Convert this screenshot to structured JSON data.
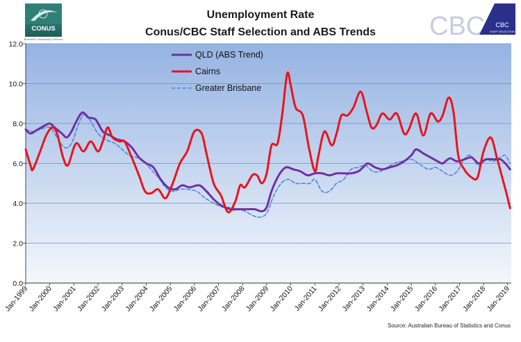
{
  "logos": {
    "conus": {
      "text": "CONUS",
      "tagline": "Business Consultancy Services"
    },
    "cbc": {
      "text": "CBC",
      "badge_line1": "CBC",
      "badge_line2": "STAFF SELECTION"
    }
  },
  "colors": {
    "qld": "#7030A0",
    "cairns": "#E8141B",
    "brisbane": "#4A86D8",
    "plot_top": "#95B3E2",
    "plot_bottom": "#F4F7FC",
    "gridline": "#6B8FC6"
  },
  "chart_data": {
    "type": "line",
    "title": "Unemployment Rate",
    "subtitle": "Conus/CBC Staff Selection and ABS Trends",
    "ylim": [
      0,
      12
    ],
    "yticks": [
      "0.0",
      "2.0",
      "4.0",
      "6.0",
      "8.0",
      "10.0",
      "12.0"
    ],
    "ytick_values": [
      0,
      2,
      4,
      6,
      8,
      10,
      12
    ],
    "xlim": [
      1999,
      2019.15
    ],
    "xticks": [
      "Jan-1999",
      "Jan-2000",
      "Jan-2001",
      "Jan-2002",
      "Jan-2003",
      "Jan-2004",
      "Jan-2005",
      "Jan-2006",
      "Jan-2007",
      "Jan-2008",
      "Jan-2009",
      "Jan-2010",
      "Jan-2011",
      "Jan-2012",
      "Jan-2013",
      "Jan-2014",
      "Jan-2015",
      "Jan-2016",
      "Jan-2017",
      "Jan-2018",
      "Jan-2019"
    ],
    "xtick_values": [
      1999,
      2000,
      2001,
      2002,
      2003,
      2004,
      2005,
      2006,
      2007,
      2008,
      2009,
      2010,
      2011,
      2012,
      2013,
      2014,
      2015,
      2016,
      2017,
      2018,
      2019
    ],
    "grid": "horizontal",
    "legend_position": "top-center",
    "source": "Source: Australian Bureau of Statistics and Conus",
    "series": [
      {
        "name": "QLD (ABS Trend)",
        "style": "solid",
        "points": [
          [
            1999,
            7.7
          ],
          [
            1999.2,
            7.5
          ],
          [
            1999.5,
            7.7
          ],
          [
            1999.8,
            7.9
          ],
          [
            2000,
            8.0
          ],
          [
            2000.2,
            7.8
          ],
          [
            2000.5,
            7.5
          ],
          [
            2000.7,
            7.3
          ],
          [
            2000.9,
            7.6
          ],
          [
            2001.1,
            8.1
          ],
          [
            2001.35,
            8.55
          ],
          [
            2001.6,
            8.3
          ],
          [
            2001.9,
            8.2
          ],
          [
            2002.2,
            7.6
          ],
          [
            2002.5,
            7.4
          ],
          [
            2002.8,
            7.2
          ],
          [
            2003.1,
            7.1
          ],
          [
            2003.4,
            6.8
          ],
          [
            2003.7,
            6.3
          ],
          [
            2004,
            6.0
          ],
          [
            2004.3,
            5.8
          ],
          [
            2004.6,
            5.2
          ],
          [
            2004.9,
            4.8
          ],
          [
            2005.2,
            4.7
          ],
          [
            2005.5,
            4.9
          ],
          [
            2005.8,
            4.8
          ],
          [
            2006.2,
            4.9
          ],
          [
            2006.5,
            4.6
          ],
          [
            2006.8,
            4.2
          ],
          [
            2007.1,
            3.9
          ],
          [
            2007.5,
            3.7
          ],
          [
            2007.8,
            3.7
          ],
          [
            2008.2,
            3.7
          ],
          [
            2008.5,
            3.7
          ],
          [
            2008.8,
            3.6
          ],
          [
            2009,
            3.8
          ],
          [
            2009.2,
            4.6
          ],
          [
            2009.5,
            5.4
          ],
          [
            2009.8,
            5.8
          ],
          [
            2010.1,
            5.7
          ],
          [
            2010.4,
            5.6
          ],
          [
            2010.7,
            5.4
          ],
          [
            2011,
            5.5
          ],
          [
            2011.3,
            5.5
          ],
          [
            2011.6,
            5.4
          ],
          [
            2011.9,
            5.5
          ],
          [
            2012.2,
            5.5
          ],
          [
            2012.5,
            5.5
          ],
          [
            2012.8,
            5.6
          ],
          [
            2013,
            5.8
          ],
          [
            2013.2,
            6.0
          ],
          [
            2013.5,
            5.8
          ],
          [
            2013.8,
            5.7
          ],
          [
            2014.1,
            5.8
          ],
          [
            2014.4,
            5.9
          ],
          [
            2014.7,
            6.1
          ],
          [
            2015.0,
            6.4
          ],
          [
            2015.2,
            6.7
          ],
          [
            2015.5,
            6.5
          ],
          [
            2015.8,
            6.3
          ],
          [
            2016.1,
            6.1
          ],
          [
            2016.3,
            6.0
          ],
          [
            2016.6,
            6.25
          ],
          [
            2016.9,
            6.1
          ],
          [
            2017.2,
            6.2
          ],
          [
            2017.5,
            6.3
          ],
          [
            2017.8,
            6.0
          ],
          [
            2018.1,
            6.2
          ],
          [
            2018.4,
            6.2
          ],
          [
            2018.7,
            6.2
          ],
          [
            2018.9,
            6.0
          ],
          [
            2019.1,
            5.7
          ]
        ]
      },
      {
        "name": "Cairns",
        "style": "solid",
        "points": [
          [
            1999,
            6.7
          ],
          [
            1999.2,
            5.9
          ],
          [
            1999.3,
            5.7
          ],
          [
            1999.6,
            6.6
          ],
          [
            1999.85,
            7.4
          ],
          [
            2000.1,
            7.8
          ],
          [
            2000.3,
            7.5
          ],
          [
            2000.55,
            6.3
          ],
          [
            2000.75,
            5.9
          ],
          [
            2001,
            6.8
          ],
          [
            2001.15,
            7.0
          ],
          [
            2001.4,
            6.6
          ],
          [
            2001.7,
            7.1
          ],
          [
            2002,
            6.6
          ],
          [
            2002.2,
            7.1
          ],
          [
            2002.4,
            7.8
          ],
          [
            2002.6,
            7.3
          ],
          [
            2002.9,
            7.1
          ],
          [
            2003.1,
            7.1
          ],
          [
            2003.4,
            6.3
          ],
          [
            2003.7,
            5.4
          ],
          [
            2003.95,
            4.6
          ],
          [
            2004.2,
            4.5
          ],
          [
            2004.5,
            4.7
          ],
          [
            2004.8,
            4.25
          ],
          [
            2005.1,
            5.0
          ],
          [
            2005.4,
            6.0
          ],
          [
            2005.7,
            6.6
          ],
          [
            2006,
            7.6
          ],
          [
            2006.3,
            7.5
          ],
          [
            2006.5,
            6.5
          ],
          [
            2006.8,
            5.0
          ],
          [
            2007.1,
            4.4
          ],
          [
            2007.4,
            3.55
          ],
          [
            2007.7,
            4.1
          ],
          [
            2007.9,
            4.9
          ],
          [
            2008.1,
            4.8
          ],
          [
            2008.4,
            5.4
          ],
          [
            2008.6,
            5.4
          ],
          [
            2008.8,
            5.0
          ],
          [
            2009,
            5.5
          ],
          [
            2009.2,
            6.9
          ],
          [
            2009.45,
            7.0
          ],
          [
            2009.65,
            8.5
          ],
          [
            2009.85,
            10.5
          ],
          [
            2010.0,
            9.9
          ],
          [
            2010.2,
            8.8
          ],
          [
            2010.5,
            8.4
          ],
          [
            2010.75,
            6.8
          ],
          [
            2011,
            5.6
          ],
          [
            2011.15,
            6.4
          ],
          [
            2011.4,
            7.6
          ],
          [
            2011.7,
            6.9
          ],
          [
            2011.9,
            7.5
          ],
          [
            2012.1,
            8.4
          ],
          [
            2012.35,
            8.4
          ],
          [
            2012.6,
            8.8
          ],
          [
            2012.9,
            9.6
          ],
          [
            2013.15,
            8.6
          ],
          [
            2013.35,
            7.8
          ],
          [
            2013.55,
            7.9
          ],
          [
            2013.8,
            8.5
          ],
          [
            2014.1,
            8.2
          ],
          [
            2014.4,
            8.5
          ],
          [
            2014.7,
            7.5
          ],
          [
            2014.9,
            7.7
          ],
          [
            2015.2,
            8.5
          ],
          [
            2015.5,
            7.4
          ],
          [
            2015.8,
            8.5
          ],
          [
            2016.1,
            8.1
          ],
          [
            2016.3,
            8.4
          ],
          [
            2016.55,
            9.3
          ],
          [
            2016.75,
            8.6
          ],
          [
            2016.95,
            6.4
          ],
          [
            2017.2,
            5.7
          ],
          [
            2017.5,
            5.3
          ],
          [
            2017.75,
            5.3
          ],
          [
            2018,
            6.6
          ],
          [
            2018.3,
            7.3
          ],
          [
            2018.55,
            6.3
          ],
          [
            2018.75,
            5.4
          ],
          [
            2018.95,
            4.5
          ],
          [
            2019.1,
            3.75
          ]
        ]
      },
      {
        "name": "Greater Brisbane",
        "style": "dashed",
        "points": [
          [
            1999,
            7.7
          ],
          [
            1999.3,
            7.6
          ],
          [
            1999.6,
            7.7
          ],
          [
            2000,
            7.8
          ],
          [
            2000.3,
            7.3
          ],
          [
            2000.6,
            6.8
          ],
          [
            2000.9,
            7.0
          ],
          [
            2001.2,
            8.0
          ],
          [
            2001.45,
            8.5
          ],
          [
            2001.7,
            8.1
          ],
          [
            2002.0,
            7.5
          ],
          [
            2002.3,
            7.2
          ],
          [
            2002.7,
            7.0
          ],
          [
            2003.0,
            6.7
          ],
          [
            2003.3,
            6.4
          ],
          [
            2003.6,
            6.3
          ],
          [
            2003.9,
            6.1
          ],
          [
            2004.2,
            5.7
          ],
          [
            2004.5,
            5.3
          ],
          [
            2004.8,
            4.8
          ],
          [
            2005.1,
            4.6
          ],
          [
            2005.4,
            4.7
          ],
          [
            2005.7,
            4.7
          ],
          [
            2006.1,
            4.6
          ],
          [
            2006.4,
            4.3
          ],
          [
            2006.8,
            4.0
          ],
          [
            2007.2,
            3.8
          ],
          [
            2007.5,
            3.8
          ],
          [
            2007.8,
            3.7
          ],
          [
            2008.1,
            3.6
          ],
          [
            2008.4,
            3.4
          ],
          [
            2008.7,
            3.3
          ],
          [
            2009.0,
            3.5
          ],
          [
            2009.3,
            4.4
          ],
          [
            2009.6,
            5.0
          ],
          [
            2009.9,
            5.2
          ],
          [
            2010.2,
            5.0
          ],
          [
            2010.5,
            5.0
          ],
          [
            2010.8,
            5.0
          ],
          [
            2011.0,
            5.2
          ],
          [
            2011.3,
            4.6
          ],
          [
            2011.6,
            4.6
          ],
          [
            2011.9,
            5.0
          ],
          [
            2012.2,
            5.2
          ],
          [
            2012.5,
            5.7
          ],
          [
            2012.8,
            5.8
          ],
          [
            2013.1,
            5.9
          ],
          [
            2013.4,
            5.6
          ],
          [
            2013.7,
            5.6
          ],
          [
            2014.0,
            5.8
          ],
          [
            2014.3,
            6.0
          ],
          [
            2014.6,
            6.1
          ],
          [
            2015.0,
            6.2
          ],
          [
            2015.3,
            6.0
          ],
          [
            2015.7,
            5.7
          ],
          [
            2016.0,
            5.8
          ],
          [
            2016.3,
            5.6
          ],
          [
            2016.6,
            5.4
          ],
          [
            2016.9,
            5.6
          ],
          [
            2017.2,
            6.2
          ],
          [
            2017.45,
            6.4
          ],
          [
            2017.8,
            5.9
          ],
          [
            2018.1,
            6.2
          ],
          [
            2018.4,
            6.1
          ],
          [
            2018.7,
            6.3
          ],
          [
            2018.9,
            6.4
          ],
          [
            2019.1,
            6.0
          ]
        ]
      }
    ]
  }
}
